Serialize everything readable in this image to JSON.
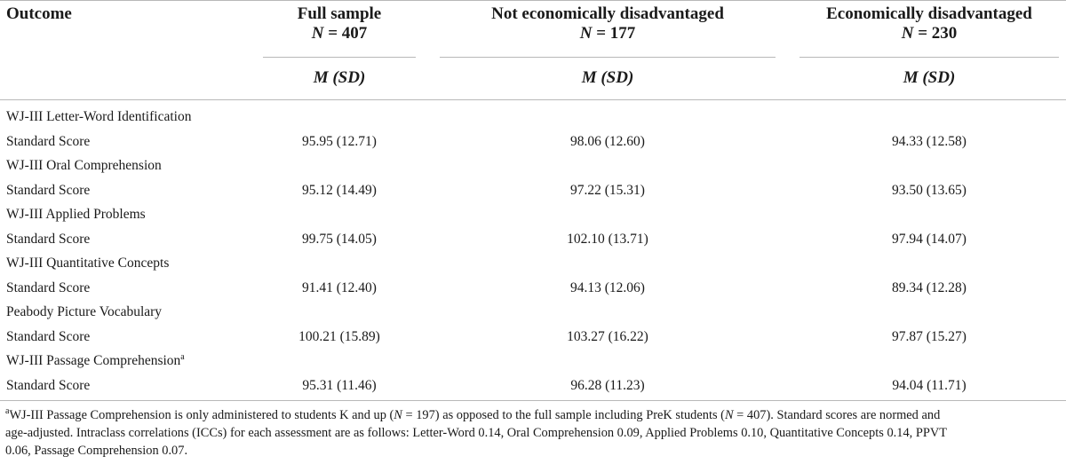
{
  "header": {
    "outcome": "Outcome",
    "columns": [
      {
        "title": "Full sample",
        "n_label": "N",
        "n_value": "= 407"
      },
      {
        "title": "Not economically disadvantaged",
        "n_label": "N",
        "n_value": "= 177"
      },
      {
        "title": "Economically disadvantaged",
        "n_label": "N",
        "n_value": "= 230"
      }
    ],
    "stat": "M (SD)"
  },
  "rows": [
    {
      "measure": "WJ-III Letter-Word Identification",
      "sup": "",
      "sublabel": "Standard Score",
      "values": [
        "95.95 (12.71)",
        "98.06 (12.60)",
        "94.33 (12.58)"
      ]
    },
    {
      "measure": "WJ-III Oral Comprehension",
      "sup": "",
      "sublabel": "Standard Score",
      "values": [
        "95.12 (14.49)",
        "97.22 (15.31)",
        "93.50 (13.65)"
      ]
    },
    {
      "measure": "WJ-III Applied Problems",
      "sup": "",
      "sublabel": "Standard Score",
      "values": [
        "99.75 (14.05)",
        "102.10 (13.71)",
        "97.94 (14.07)"
      ]
    },
    {
      "measure": "WJ-III Quantitative Concepts",
      "sup": "",
      "sublabel": "Standard Score",
      "values": [
        "91.41 (12.40)",
        "94.13 (12.06)",
        "89.34 (12.28)"
      ]
    },
    {
      "measure": "Peabody Picture Vocabulary",
      "sup": "",
      "sublabel": "Standard Score",
      "values": [
        "100.21 (15.89)",
        "103.27 (16.22)",
        "97.87 (15.27)"
      ]
    },
    {
      "measure": "WJ-III Passage Comprehension",
      "sup": "a",
      "sublabel": "Standard Score",
      "values": [
        "95.31 (11.46)",
        "96.28 (11.23)",
        "94.04 (11.71)"
      ]
    }
  ],
  "footnote": {
    "marker": "a",
    "p1": "WJ-III Passage Comprehension is only administered to students K and up (",
    "n1_label": "N",
    "n1_value": " = 197) as opposed to the full sample including PreK students (",
    "n2_label": "N",
    "n2_value": " = 407). Standard scores are normed and",
    "line2": "age-adjusted. Intraclass correlations (ICCs) for each assessment are as follows: Letter-Word 0.14, Oral Comprehension 0.09, Applied Problems 0.10, Quantitative Concepts 0.14, PPVT",
    "line3": "0.06, Passage Comprehension 0.07."
  }
}
